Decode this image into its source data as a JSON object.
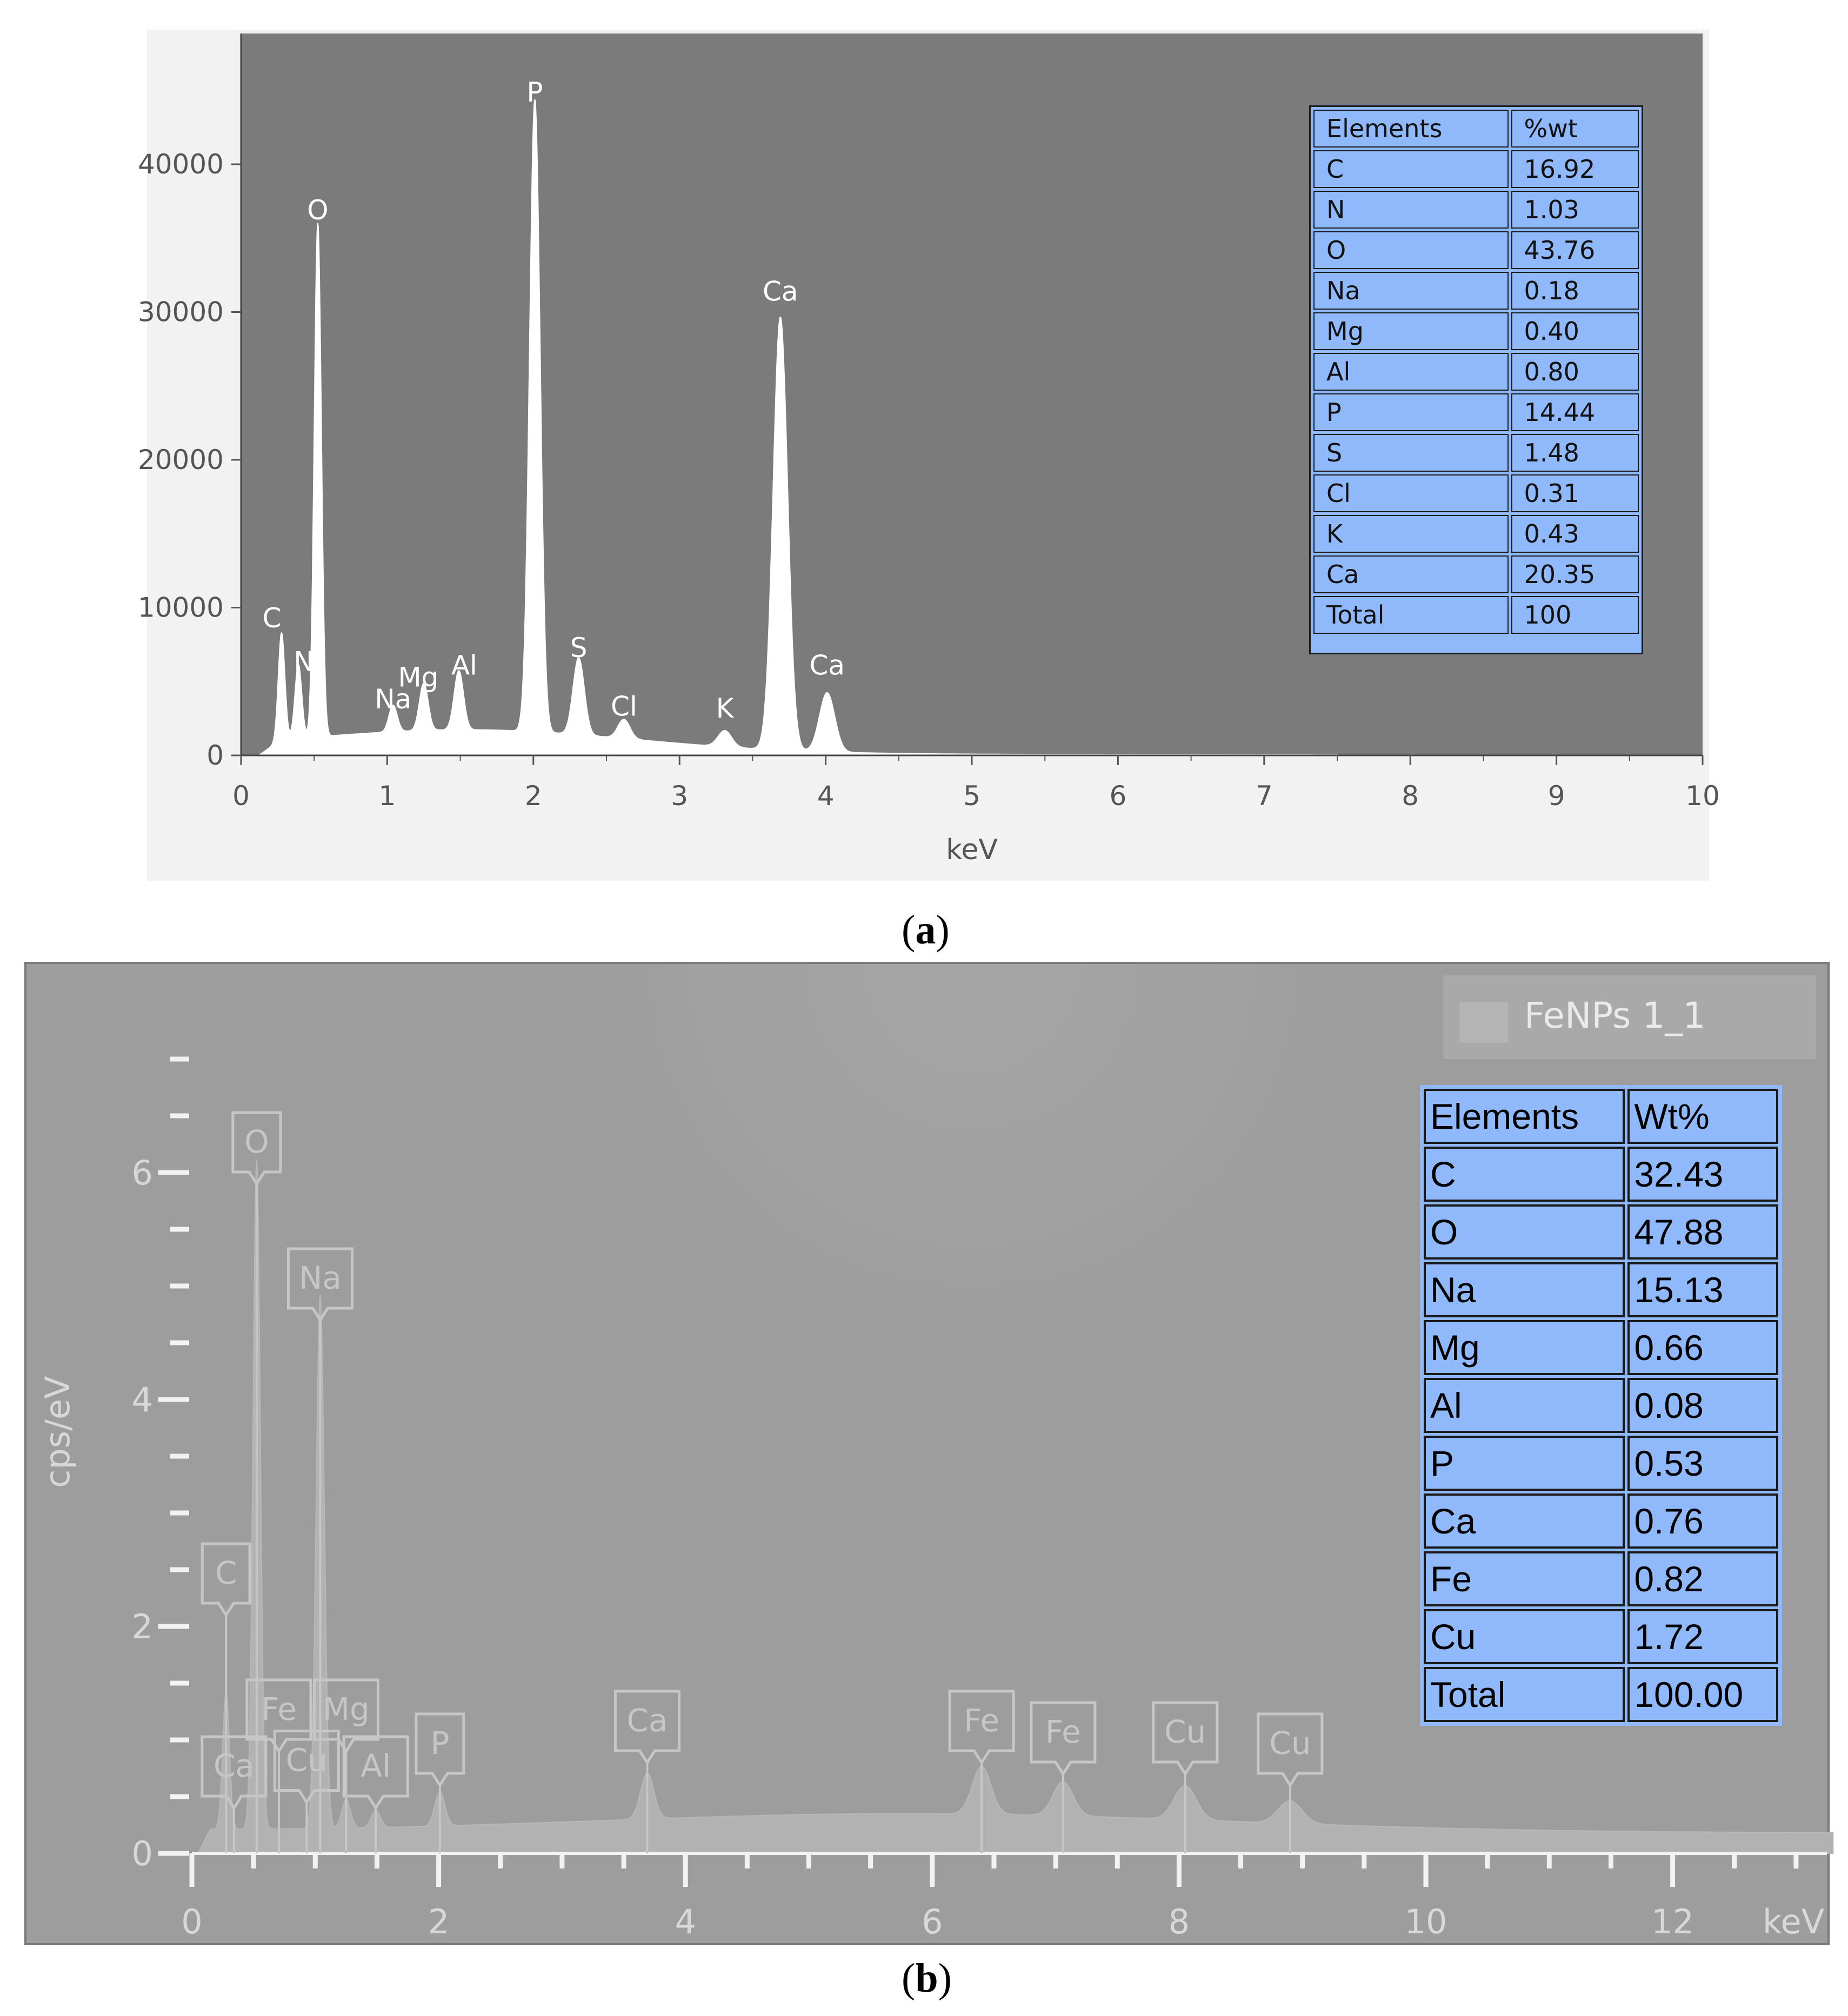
{
  "captions": {
    "a": "a",
    "b": "b"
  },
  "chart_data": [
    {
      "type": "area",
      "panel": "a",
      "xlabel": "keV",
      "ylabel": "",
      "xlim": [
        0,
        10
      ],
      "ylim": [
        0,
        45000
      ],
      "xticks": [
        "0",
        "1",
        "2",
        "3",
        "4",
        "5",
        "6",
        "7",
        "8",
        "9",
        "10"
      ],
      "yticks": [
        "0",
        "10000",
        "20000",
        "30000",
        "40000"
      ],
      "peaks": [
        {
          "label": "C",
          "x": 0.277,
          "y": 7200
        },
        {
          "label": "N",
          "x": 0.392,
          "y": 5000
        },
        {
          "label": "O",
          "x": 0.525,
          "y": 34800
        },
        {
          "label": "Na",
          "x": 1.04,
          "y": 1800
        },
        {
          "label": "Mg",
          "x": 1.25,
          "y": 3200
        },
        {
          "label": "Al",
          "x": 1.49,
          "y": 4000
        },
        {
          "label": "P",
          "x": 2.01,
          "y": 42800
        },
        {
          "label": "S",
          "x": 2.31,
          "y": 5200
        },
        {
          "label": "Cl",
          "x": 2.62,
          "y": 1300
        },
        {
          "label": "K",
          "x": 3.31,
          "y": 1100
        },
        {
          "label": "Ca",
          "x": 3.69,
          "y": 29300
        },
        {
          "label": "Ca",
          "x": 4.01,
          "y": 4000
        }
      ],
      "table": {
        "header": [
          "Elements",
          "%wt"
        ],
        "rows": [
          [
            "C",
            "16.92"
          ],
          [
            "N",
            "1.03"
          ],
          [
            "O",
            "43.76"
          ],
          [
            "Na",
            "0.18"
          ],
          [
            "Mg",
            "0.40"
          ],
          [
            "Al",
            "0.80"
          ],
          [
            "P",
            "14.44"
          ],
          [
            "S",
            "1.48"
          ],
          [
            "Cl",
            "0.31"
          ],
          [
            "K",
            "0.43"
          ],
          [
            "Ca",
            "20.35"
          ],
          [
            "Total",
            "100"
          ]
        ]
      },
      "colors": {
        "plot_bg": "#7b7b7b",
        "spectrum": "#ffffff",
        "table_bg": "#8fb9fa"
      }
    },
    {
      "type": "area",
      "panel": "b",
      "xlabel": "keV",
      "ylabel": "cps/eV",
      "xlim": [
        0,
        13.5
      ],
      "ylim": [
        0,
        7
      ],
      "xticks": [
        "0",
        "2",
        "4",
        "6",
        "8",
        "10",
        "12"
      ],
      "yticks": [
        "0",
        "2",
        "4",
        "6"
      ],
      "legend": "FeNPs 1_1",
      "peaks": [
        {
          "label": "C",
          "x": 0.277,
          "y": 1.2
        },
        {
          "label": "O",
          "x": 0.525,
          "y": 5.9
        },
        {
          "label": "Na",
          "x": 1.04,
          "y": 4.7
        },
        {
          "label": "Mg",
          "x": 1.25,
          "y": 0.25
        },
        {
          "label": "Al",
          "x": 1.49,
          "y": 0.15
        },
        {
          "label": "P",
          "x": 2.01,
          "y": 0.3
        },
        {
          "label": "Ca",
          "x": 3.69,
          "y": 0.4
        },
        {
          "label": "Fe",
          "x": 6.4,
          "y": 0.42
        },
        {
          "label": "Fe",
          "x": 7.06,
          "y": 0.3
        },
        {
          "label": "Cu",
          "x": 8.05,
          "y": 0.3
        },
        {
          "label": "Cu",
          "x": 8.9,
          "y": 0.2
        }
      ],
      "peak_tags": [
        {
          "label": "O",
          "x": 0.525,
          "y": 5.9
        },
        {
          "label": "Na",
          "x": 1.04,
          "y": 4.7
        },
        {
          "label": "C",
          "x": 0.277,
          "y": 2.1
        },
        {
          "label": "Fe",
          "x": 0.705,
          "y": 0.9
        },
        {
          "label": "Mg",
          "x": 1.25,
          "y": 0.9
        },
        {
          "label": "Ca",
          "x": 0.341,
          "y": 0.4
        },
        {
          "label": "Cu",
          "x": 0.93,
          "y": 0.45
        },
        {
          "label": "Al",
          "x": 1.49,
          "y": 0.4
        },
        {
          "label": "P",
          "x": 2.01,
          "y": 0.6
        },
        {
          "label": "Ca",
          "x": 3.69,
          "y": 0.8
        },
        {
          "label": "Fe",
          "x": 6.4,
          "y": 0.8
        },
        {
          "label": "Fe",
          "x": 7.06,
          "y": 0.7
        },
        {
          "label": "Cu",
          "x": 8.05,
          "y": 0.7
        },
        {
          "label": "Cu",
          "x": 8.9,
          "y": 0.6
        }
      ],
      "table": {
        "header": [
          "Elements",
          "Wt%"
        ],
        "rows": [
          [
            "C",
            "32.43"
          ],
          [
            "O",
            "47.88"
          ],
          [
            "Na",
            "15.13"
          ],
          [
            "Mg",
            "0.66"
          ],
          [
            "Al",
            "0.08"
          ],
          [
            "P",
            "0.53"
          ],
          [
            "Ca",
            "0.76"
          ],
          [
            "Fe",
            "0.82"
          ],
          [
            "Cu",
            "1.72"
          ],
          [
            "Total",
            "100.00"
          ]
        ]
      },
      "colors": {
        "plot_bg": "#9d9d9d",
        "spectrum": "#b2b2b2",
        "axis": "#f2f2f2",
        "tag": "#c6c6c6",
        "table_bg": "#8fb9fa"
      }
    }
  ]
}
